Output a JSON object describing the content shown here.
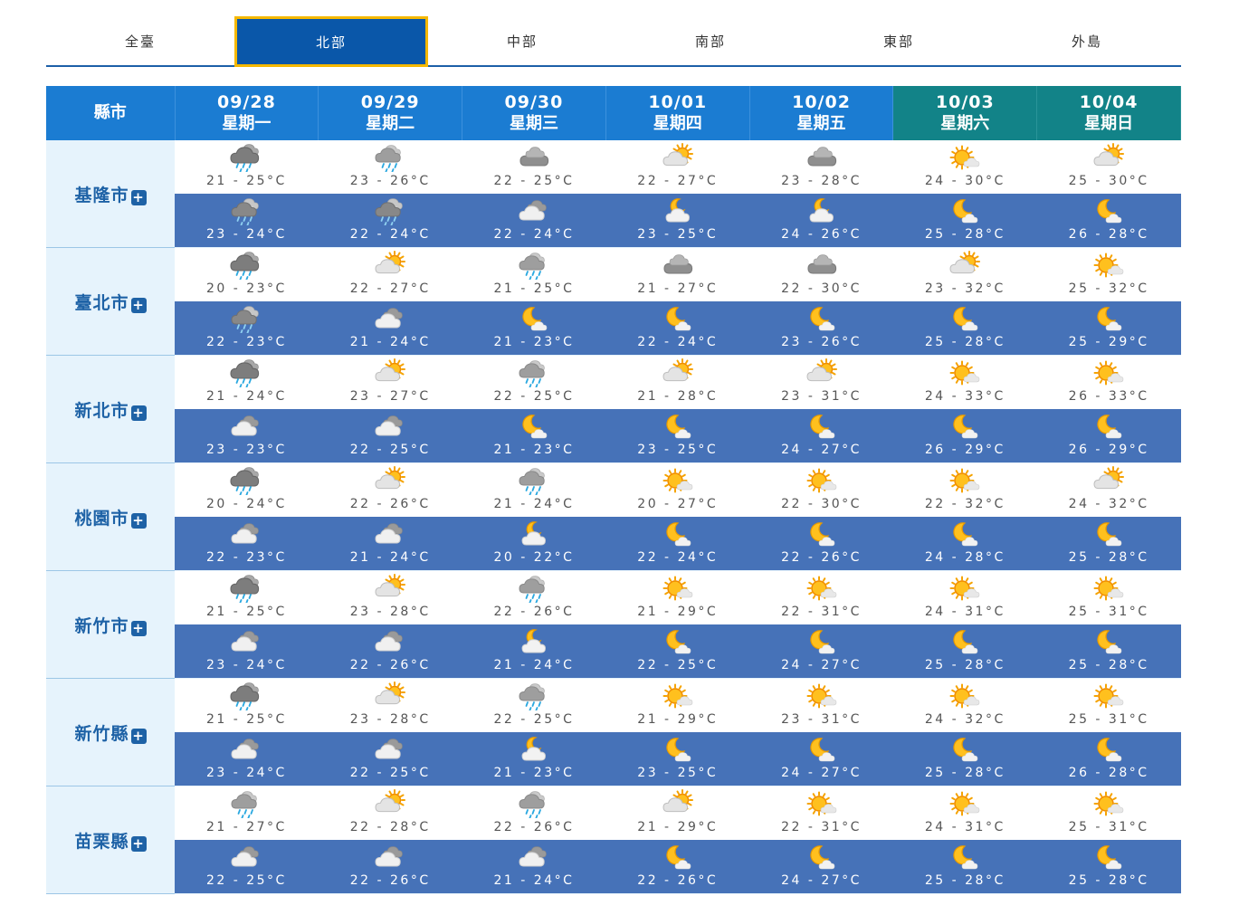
{
  "tabs": [
    {
      "label": "全臺",
      "active": false
    },
    {
      "label": "北部",
      "active": true
    },
    {
      "label": "中部",
      "active": false
    },
    {
      "label": "南部",
      "active": false
    },
    {
      "label": "東部",
      "active": false
    },
    {
      "label": "外島",
      "active": false
    }
  ],
  "header": {
    "county_label": "縣市",
    "days": [
      {
        "date": "09/28",
        "weekday": "星期一",
        "weekend": false
      },
      {
        "date": "09/29",
        "weekday": "星期二",
        "weekend": false
      },
      {
        "date": "09/30",
        "weekday": "星期三",
        "weekend": false
      },
      {
        "date": "10/01",
        "weekday": "星期四",
        "weekend": false
      },
      {
        "date": "10/02",
        "weekday": "星期五",
        "weekend": false
      },
      {
        "date": "10/03",
        "weekday": "星期六",
        "weekend": true
      },
      {
        "date": "10/04",
        "weekday": "星期日",
        "weekend": true
      }
    ]
  },
  "colors": {
    "tab_active": "#0a57a9",
    "tab_border": "#f5b800",
    "header": "#1b7cd2",
    "weekend_header": "#128388",
    "night_row": "#4672b8",
    "county_bg": "#e6f3fc"
  },
  "counties": [
    {
      "name": "基隆市",
      "day": [
        {
          "icon": "rain-icon",
          "temp": "21 - 25°C"
        },
        {
          "icon": "light-rain-icon",
          "temp": "23 - 26°C"
        },
        {
          "icon": "cloudy-icon",
          "temp": "22 - 25°C"
        },
        {
          "icon": "partly-sunny-icon",
          "temp": "22 - 27°C"
        },
        {
          "icon": "cloudy-icon",
          "temp": "23 - 28°C"
        },
        {
          "icon": "sunny-icon",
          "temp": "24 - 30°C"
        },
        {
          "icon": "partly-sunny-icon",
          "temp": "25 - 30°C"
        }
      ],
      "night": [
        {
          "icon": "night-cloudy-rain-icon",
          "temp": "23 - 24°C"
        },
        {
          "icon": "night-cloudy-rain-icon",
          "temp": "22 - 24°C"
        },
        {
          "icon": "night-cloudy-icon",
          "temp": "22 - 24°C"
        },
        {
          "icon": "night-partly-cloudy-icon",
          "temp": "23 - 25°C"
        },
        {
          "icon": "night-partly-cloudy-icon",
          "temp": "24 - 26°C"
        },
        {
          "icon": "moon-icon",
          "temp": "25 - 28°C"
        },
        {
          "icon": "moon-icon",
          "temp": "26 - 28°C"
        }
      ]
    },
    {
      "name": "臺北市",
      "day": [
        {
          "icon": "rain-icon",
          "temp": "20 - 23°C"
        },
        {
          "icon": "partly-sunny-icon",
          "temp": "22 - 27°C"
        },
        {
          "icon": "light-rain-icon",
          "temp": "21 - 25°C"
        },
        {
          "icon": "cloudy-icon",
          "temp": "21 - 27°C"
        },
        {
          "icon": "cloudy-icon",
          "temp": "22 - 30°C"
        },
        {
          "icon": "partly-sunny-icon",
          "temp": "23 - 32°C"
        },
        {
          "icon": "sunny-icon",
          "temp": "25 - 32°C"
        }
      ],
      "night": [
        {
          "icon": "night-cloudy-rain-icon",
          "temp": "22 - 23°C"
        },
        {
          "icon": "night-cloudy-icon",
          "temp": "21 - 24°C"
        },
        {
          "icon": "moon-icon",
          "temp": "21 - 23°C"
        },
        {
          "icon": "moon-icon",
          "temp": "22 - 24°C"
        },
        {
          "icon": "moon-icon",
          "temp": "23 - 26°C"
        },
        {
          "icon": "moon-icon",
          "temp": "25 - 28°C"
        },
        {
          "icon": "moon-icon",
          "temp": "25 - 29°C"
        }
      ]
    },
    {
      "name": "新北市",
      "day": [
        {
          "icon": "rain-icon",
          "temp": "21 - 24°C"
        },
        {
          "icon": "partly-sunny-icon",
          "temp": "23 - 27°C"
        },
        {
          "icon": "light-rain-icon",
          "temp": "22 - 25°C"
        },
        {
          "icon": "partly-sunny-icon",
          "temp": "21 - 28°C"
        },
        {
          "icon": "partly-sunny-icon",
          "temp": "23 - 31°C"
        },
        {
          "icon": "sunny-icon",
          "temp": "24 - 33°C"
        },
        {
          "icon": "sunny-icon",
          "temp": "26 - 33°C"
        }
      ],
      "night": [
        {
          "icon": "night-cloudy-icon",
          "temp": "23 - 23°C"
        },
        {
          "icon": "night-cloudy-icon",
          "temp": "22 - 25°C"
        },
        {
          "icon": "moon-icon",
          "temp": "21 - 23°C"
        },
        {
          "icon": "moon-icon",
          "temp": "23 - 25°C"
        },
        {
          "icon": "moon-icon",
          "temp": "24 - 27°C"
        },
        {
          "icon": "moon-icon",
          "temp": "26 - 29°C"
        },
        {
          "icon": "moon-icon",
          "temp": "26 - 29°C"
        }
      ]
    },
    {
      "name": "桃園市",
      "day": [
        {
          "icon": "rain-icon",
          "temp": "20 - 24°C"
        },
        {
          "icon": "partly-sunny-icon",
          "temp": "22 - 26°C"
        },
        {
          "icon": "light-rain-icon",
          "temp": "21 - 24°C"
        },
        {
          "icon": "sunny-icon",
          "temp": "20 - 27°C"
        },
        {
          "icon": "sunny-icon",
          "temp": "22 - 30°C"
        },
        {
          "icon": "sunny-icon",
          "temp": "22 - 32°C"
        },
        {
          "icon": "partly-sunny-icon",
          "temp": "24 - 32°C"
        }
      ],
      "night": [
        {
          "icon": "night-cloudy-icon",
          "temp": "22 - 23°C"
        },
        {
          "icon": "night-cloudy-icon",
          "temp": "21 - 24°C"
        },
        {
          "icon": "night-partly-cloudy-icon",
          "temp": "20 - 22°C"
        },
        {
          "icon": "moon-icon",
          "temp": "22 - 24°C"
        },
        {
          "icon": "moon-icon",
          "temp": "22 - 26°C"
        },
        {
          "icon": "moon-icon",
          "temp": "24 - 28°C"
        },
        {
          "icon": "moon-icon",
          "temp": "25 - 28°C"
        }
      ]
    },
    {
      "name": "新竹市",
      "day": [
        {
          "icon": "rain-icon",
          "temp": "21 - 25°C"
        },
        {
          "icon": "partly-sunny-icon",
          "temp": "23 - 28°C"
        },
        {
          "icon": "light-rain-icon",
          "temp": "22 - 26°C"
        },
        {
          "icon": "sunny-icon",
          "temp": "21 - 29°C"
        },
        {
          "icon": "sunny-icon",
          "temp": "22 - 31°C"
        },
        {
          "icon": "sunny-icon",
          "temp": "24 - 31°C"
        },
        {
          "icon": "sunny-icon",
          "temp": "25 - 31°C"
        }
      ],
      "night": [
        {
          "icon": "night-cloudy-icon",
          "temp": "23 - 24°C"
        },
        {
          "icon": "night-cloudy-icon",
          "temp": "22 - 26°C"
        },
        {
          "icon": "night-partly-cloudy-icon",
          "temp": "21 - 24°C"
        },
        {
          "icon": "moon-icon",
          "temp": "22 - 25°C"
        },
        {
          "icon": "moon-icon",
          "temp": "24 - 27°C"
        },
        {
          "icon": "moon-icon",
          "temp": "25 - 28°C"
        },
        {
          "icon": "moon-icon",
          "temp": "25 - 28°C"
        }
      ]
    },
    {
      "name": "新竹縣",
      "day": [
        {
          "icon": "rain-icon",
          "temp": "21 - 25°C"
        },
        {
          "icon": "partly-sunny-icon",
          "temp": "23 - 28°C"
        },
        {
          "icon": "light-rain-icon",
          "temp": "22 - 25°C"
        },
        {
          "icon": "sunny-icon",
          "temp": "21 - 29°C"
        },
        {
          "icon": "sunny-icon",
          "temp": "23 - 31°C"
        },
        {
          "icon": "sunny-icon",
          "temp": "24 - 32°C"
        },
        {
          "icon": "sunny-icon",
          "temp": "25 - 31°C"
        }
      ],
      "night": [
        {
          "icon": "night-cloudy-icon",
          "temp": "23 - 24°C"
        },
        {
          "icon": "night-cloudy-icon",
          "temp": "22 - 25°C"
        },
        {
          "icon": "night-partly-cloudy-icon",
          "temp": "21 - 23°C"
        },
        {
          "icon": "moon-icon",
          "temp": "23 - 25°C"
        },
        {
          "icon": "moon-icon",
          "temp": "24 - 27°C"
        },
        {
          "icon": "moon-icon",
          "temp": "25 - 28°C"
        },
        {
          "icon": "moon-icon",
          "temp": "26 - 28°C"
        }
      ]
    },
    {
      "name": "苗栗縣",
      "day": [
        {
          "icon": "light-rain-icon",
          "temp": "21 - 27°C"
        },
        {
          "icon": "partly-sunny-icon",
          "temp": "22 - 28°C"
        },
        {
          "icon": "light-rain-icon",
          "temp": "22 - 26°C"
        },
        {
          "icon": "partly-sunny-icon",
          "temp": "21 - 29°C"
        },
        {
          "icon": "sunny-icon",
          "temp": "22 - 31°C"
        },
        {
          "icon": "sunny-icon",
          "temp": "24 - 31°C"
        },
        {
          "icon": "sunny-icon",
          "temp": "25 - 31°C"
        }
      ],
      "night": [
        {
          "icon": "night-cloudy-icon",
          "temp": "22 - 25°C"
        },
        {
          "icon": "night-cloudy-icon",
          "temp": "22 - 26°C"
        },
        {
          "icon": "night-cloudy-icon",
          "temp": "21 - 24°C"
        },
        {
          "icon": "moon-icon",
          "temp": "22 - 26°C"
        },
        {
          "icon": "moon-icon",
          "temp": "24 - 27°C"
        },
        {
          "icon": "moon-icon",
          "temp": "25 - 28°C"
        },
        {
          "icon": "moon-icon",
          "temp": "25 - 28°C"
        }
      ]
    }
  ]
}
